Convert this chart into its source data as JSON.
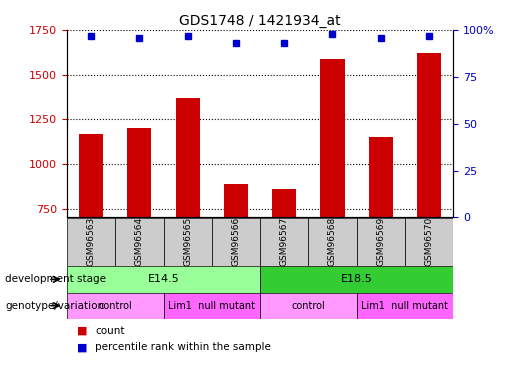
{
  "title": "GDS1748 / 1421934_at",
  "samples": [
    "GSM96563",
    "GSM96564",
    "GSM96565",
    "GSM96566",
    "GSM96567",
    "GSM96568",
    "GSM96569",
    "GSM96570"
  ],
  "counts": [
    1170,
    1200,
    1370,
    890,
    860,
    1590,
    1150,
    1620
  ],
  "percentiles": [
    97,
    96,
    97,
    93,
    93,
    98,
    96,
    97
  ],
  "ymin": 700,
  "ymax": 1750,
  "yticks": [
    750,
    1000,
    1250,
    1500,
    1750
  ],
  "right_yticks": [
    0,
    25,
    50,
    75,
    100
  ],
  "right_tick_labels": [
    "0",
    "25",
    "50",
    "75",
    "100%"
  ],
  "bar_color": "#cc0000",
  "dot_color": "#0000cc",
  "development_stage_label": "development stage",
  "genotype_label": "genotype/variation",
  "dev_stages": [
    {
      "label": "E14.5",
      "start": 0,
      "end": 3,
      "color": "#99ff99"
    },
    {
      "label": "E18.5",
      "start": 4,
      "end": 7,
      "color": "#33cc33"
    }
  ],
  "genotypes": [
    {
      "label": "control",
      "start": 0,
      "end": 1,
      "color": "#ff99ff"
    },
    {
      "label": "Lim1  null mutant",
      "start": 2,
      "end": 3,
      "color": "#ff66ff"
    },
    {
      "label": "control",
      "start": 4,
      "end": 5,
      "color": "#ff99ff"
    },
    {
      "label": "Lim1  null mutant",
      "start": 6,
      "end": 7,
      "color": "#ff66ff"
    }
  ],
  "legend_count_color": "#cc0000",
  "legend_dot_color": "#0000cc",
  "sample_box_color": "#cccccc"
}
